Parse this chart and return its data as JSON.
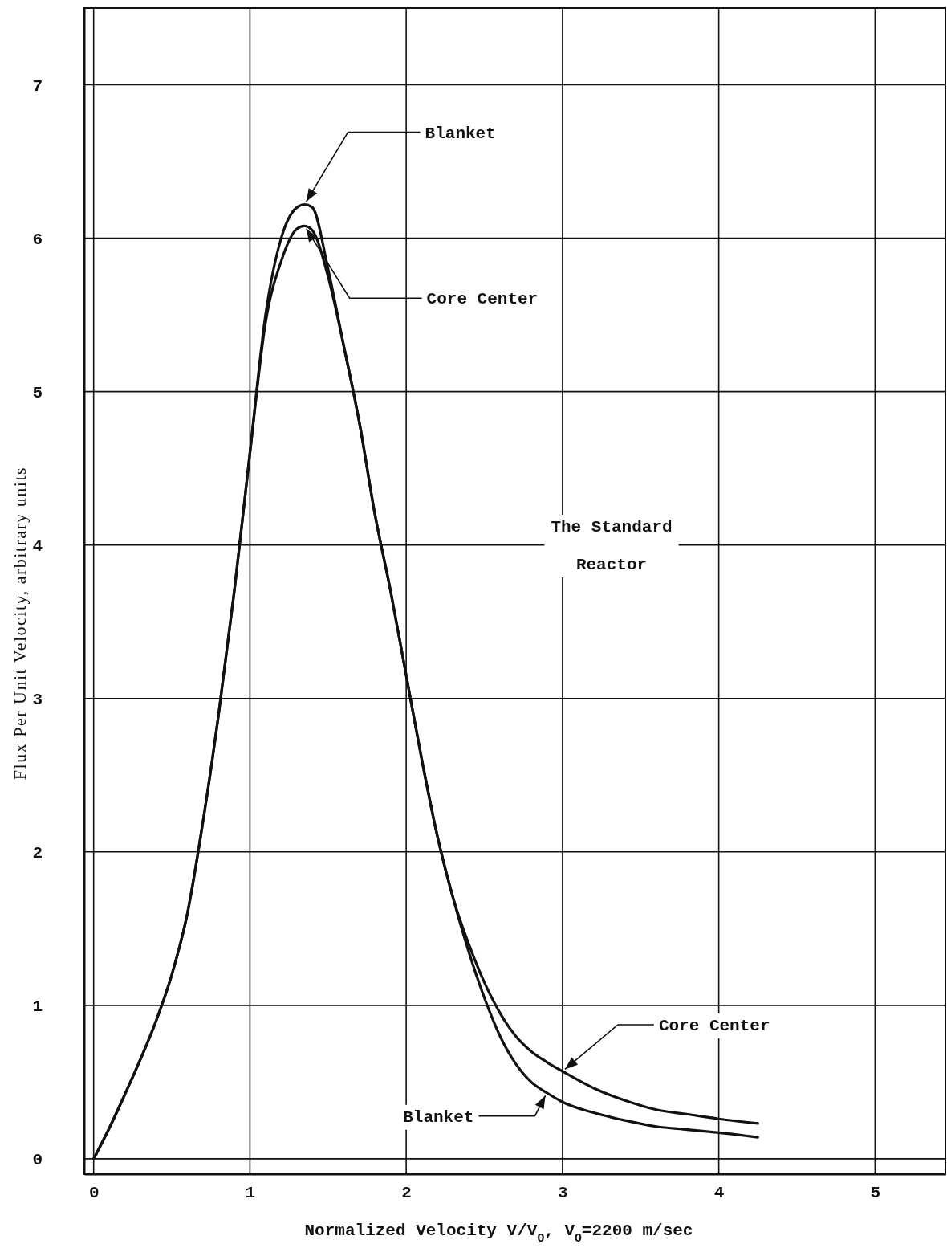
{
  "chart_data": {
    "type": "line",
    "xlabel": "Normalized Velocity V/V$_{O}$, V$_{O}$=2200 m/sec",
    "ylabel": "Flux Per Unit Velocity, arbitrary units",
    "xlim": [
      -0.06,
      5.45
    ],
    "ylim": [
      -0.1,
      7.5
    ],
    "xticks": [
      0,
      1,
      2,
      3,
      4,
      5
    ],
    "yticks": [
      0,
      1,
      2,
      3,
      4,
      5,
      6,
      7
    ],
    "grid": true,
    "line_style": "solid",
    "series": [
      {
        "color": "#111111",
        "x": [
          0,
          0.1,
          0.2,
          0.3,
          0.4,
          0.5,
          0.6,
          0.7,
          0.8,
          0.9,
          1.0,
          1.1,
          1.2,
          1.3,
          1.35,
          1.4,
          1.5,
          1.6,
          1.7,
          1.8,
          1.9,
          2.0,
          2.1,
          2.2,
          2.3,
          2.4,
          2.5,
          2.6,
          2.7,
          2.8,
          2.9,
          3.0,
          3.2,
          3.4,
          3.6,
          3.8,
          4.0,
          4.25
        ],
        "values": [
          0,
          0.2,
          0.42,
          0.65,
          0.9,
          1.2,
          1.6,
          2.2,
          2.9,
          3.7,
          4.6,
          5.5,
          6.0,
          6.2,
          6.22,
          6.2,
          5.8,
          5.3,
          4.8,
          4.2,
          3.7,
          3.15,
          2.6,
          2.1,
          1.7,
          1.35,
          1.05,
          0.8,
          0.62,
          0.5,
          0.43,
          0.37,
          0.3,
          0.25,
          0.21,
          0.19,
          0.17,
          0.14
        ]
      },
      {
        "color": "#111111",
        "x": [
          0,
          0.1,
          0.2,
          0.3,
          0.4,
          0.5,
          0.6,
          0.7,
          0.8,
          0.9,
          1.0,
          1.1,
          1.2,
          1.3,
          1.35,
          1.4,
          1.5,
          1.6,
          1.7,
          1.8,
          1.9,
          2.0,
          2.1,
          2.2,
          2.3,
          2.4,
          2.5,
          2.6,
          2.7,
          2.8,
          2.9,
          3.0,
          3.2,
          3.4,
          3.6,
          3.8,
          4.0,
          4.25
        ],
        "values": [
          0,
          0.2,
          0.42,
          0.65,
          0.9,
          1.2,
          1.6,
          2.2,
          2.9,
          3.7,
          4.6,
          5.45,
          5.85,
          6.06,
          6.08,
          6.05,
          5.75,
          5.3,
          4.8,
          4.2,
          3.7,
          3.15,
          2.6,
          2.1,
          1.7,
          1.4,
          1.15,
          0.95,
          0.8,
          0.7,
          0.63,
          0.57,
          0.46,
          0.38,
          0.32,
          0.29,
          0.26,
          0.23
        ]
      }
    ],
    "annotations": [
      {
        "text": "Blanket",
        "x": 1.35,
        "y": 6.22
      },
      {
        "text": "Core Center",
        "x": 1.35,
        "y": 6.08
      },
      {
        "text": "Core Center",
        "x": 3.0,
        "y": 0.57
      },
      {
        "text": "Blanket",
        "x": 2.9,
        "y": 0.43
      },
      "The Standard\nReactor"
    ]
  }
}
